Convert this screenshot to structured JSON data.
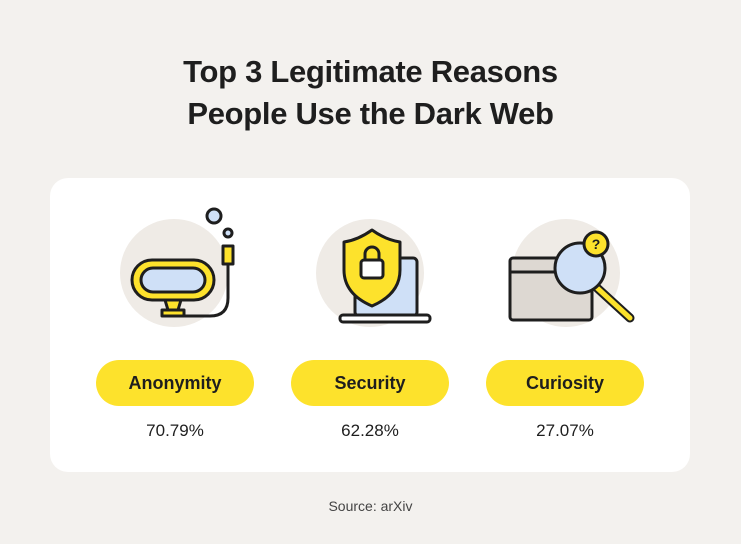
{
  "header": {
    "title_lines": [
      "Top 3 Legitimate Reasons",
      "People Use the Dark Web"
    ]
  },
  "items": [
    {
      "label": "Anonymity",
      "value": "70.79%"
    },
    {
      "label": "Security",
      "value": "62.28%"
    },
    {
      "label": "Curiosity",
      "value": "27.07%"
    }
  ],
  "footer": {
    "source": "Source: arXiv"
  }
}
